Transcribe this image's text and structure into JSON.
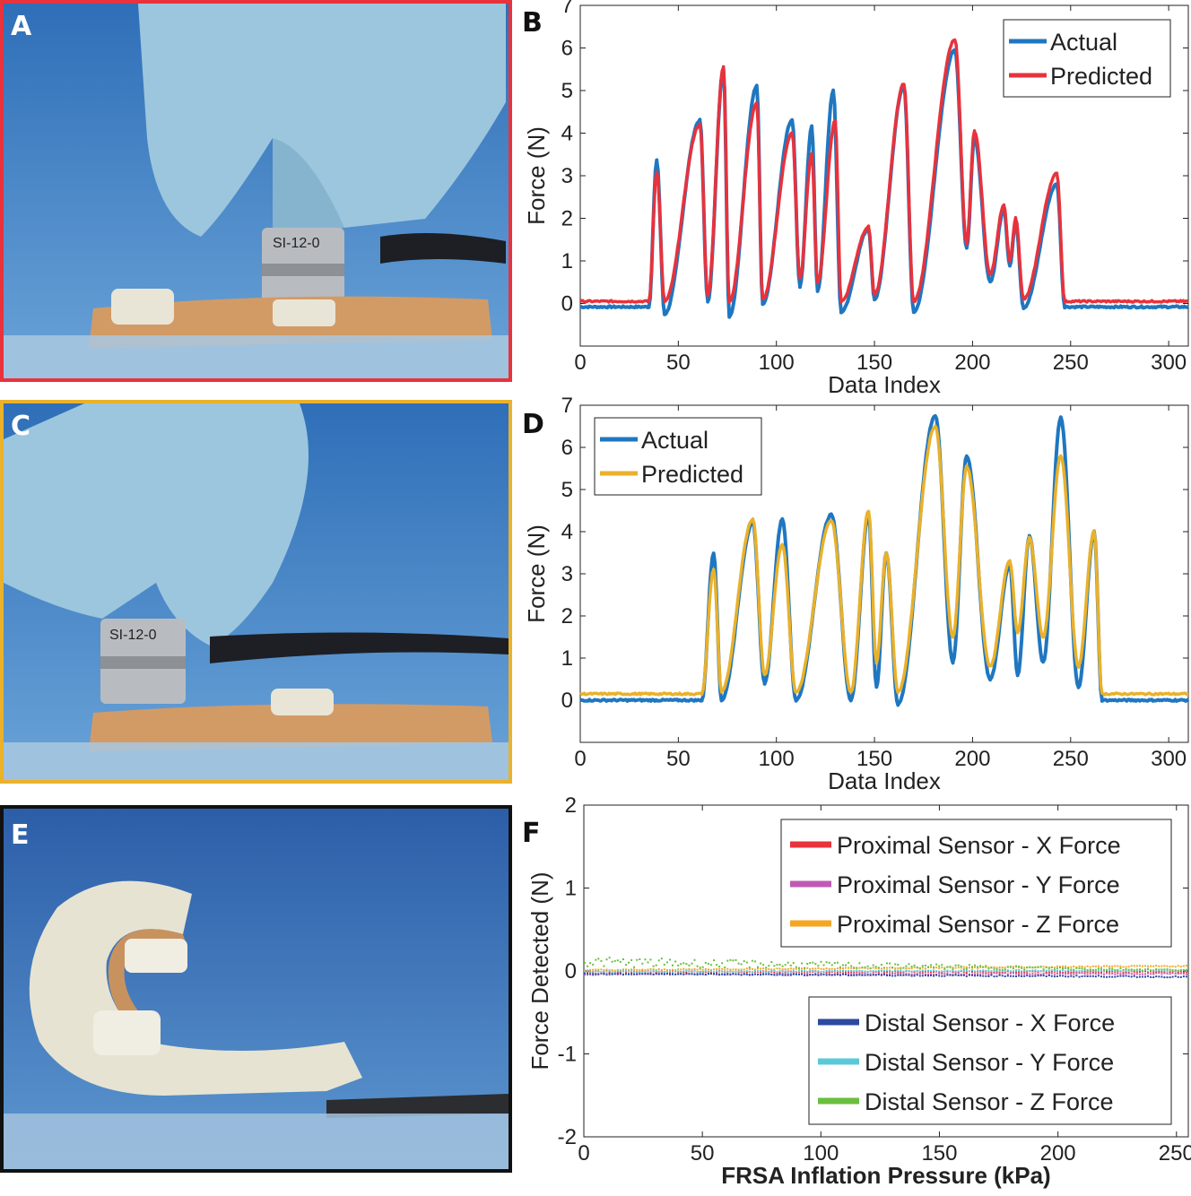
{
  "panel_labels": {
    "a": "A",
    "b": "B",
    "c": "C",
    "d": "D",
    "e": "E",
    "f": "F"
  },
  "colors": {
    "frame_a": "#e8323c",
    "frame_c": "#eab12a",
    "frame_e": "#111111",
    "actual": "#1f77c0",
    "predicted_b": "#e8323c",
    "predicted_d": "#eab12a",
    "prox_x": "#e8323c",
    "prox_y": "#c05ab4",
    "prox_z": "#f5a623",
    "dist_x": "#2b4aa0",
    "dist_y": "#5bc8d8",
    "dist_z": "#6abf3f"
  },
  "photos": {
    "a": {
      "sensor_text": "SI-12-0"
    },
    "c": {
      "sensor_text": "SI-12-0"
    }
  },
  "chart_data": [
    {
      "id": "B",
      "type": "line",
      "xlabel": "Data Index",
      "ylabel": "Force (N)",
      "xlim": [
        0,
        310
      ],
      "ylim": [
        -1,
        7
      ],
      "xticks": [
        0,
        50,
        100,
        150,
        200,
        250,
        300
      ],
      "yticks": [
        0,
        1,
        2,
        3,
        4,
        5,
        6,
        7
      ],
      "legend": "top-right",
      "series": [
        {
          "name": "Actual",
          "color": "#1f77c0",
          "baseline": -0.08,
          "peaks": [
            [
              39,
              3.35
            ],
            [
              61,
              4.3
            ],
            [
              73,
              5.5
            ],
            [
              90,
              5.1
            ],
            [
              108,
              4.3
            ],
            [
              118,
              4.15
            ],
            [
              129,
              5.0
            ],
            [
              147,
              1.75
            ],
            [
              165,
              5.1
            ],
            [
              191,
              5.95
            ],
            [
              201,
              3.9
            ],
            [
              216,
              2.2
            ],
            [
              222,
              1.9
            ],
            [
              243,
              2.8
            ]
          ],
          "valleys": [
            [
              43,
              -0.25
            ],
            [
              65,
              0.05
            ],
            [
              76,
              -0.3
            ],
            [
              93,
              0.0
            ],
            [
              112,
              0.4
            ],
            [
              121,
              0.3
            ],
            [
              133,
              -0.2
            ],
            [
              150,
              0.1
            ],
            [
              170,
              -0.2
            ],
            [
              197,
              1.3
            ],
            [
              209,
              0.5
            ],
            [
              219,
              0.9
            ],
            [
              226,
              -0.1
            ]
          ],
          "start": 35,
          "end": 247
        },
        {
          "name": "Predicted",
          "color": "#e8323c",
          "baseline": 0.05,
          "peaks": [
            [
              39,
              3.1
            ],
            [
              61,
              4.2
            ],
            [
              73,
              5.55
            ],
            [
              90,
              4.7
            ],
            [
              108,
              4.0
            ],
            [
              118,
              3.5
            ],
            [
              130,
              4.3
            ],
            [
              147,
              1.8
            ],
            [
              165,
              5.15
            ],
            [
              191,
              6.2
            ],
            [
              201,
              4.05
            ],
            [
              216,
              2.3
            ],
            [
              222,
              2.0
            ],
            [
              243,
              3.05
            ]
          ],
          "valleys": [
            [
              43,
              0.05
            ],
            [
              65,
              0.2
            ],
            [
              76,
              0.05
            ],
            [
              93,
              0.1
            ],
            [
              112,
              0.6
            ],
            [
              121,
              0.5
            ],
            [
              133,
              0.05
            ],
            [
              150,
              0.2
            ],
            [
              170,
              0.05
            ],
            [
              197,
              1.4
            ],
            [
              209,
              0.7
            ],
            [
              219,
              1.0
            ],
            [
              226,
              0.1
            ]
          ],
          "start": 35,
          "end": 247
        }
      ]
    },
    {
      "id": "D",
      "type": "line",
      "xlabel": "Data Index",
      "ylabel": "Force (N)",
      "xlim": [
        0,
        310
      ],
      "ylim": [
        -1,
        7
      ],
      "xticks": [
        0,
        50,
        100,
        150,
        200,
        250,
        300
      ],
      "yticks": [
        0,
        1,
        2,
        3,
        4,
        5,
        6,
        7
      ],
      "legend": "top-left",
      "series": [
        {
          "name": "Actual",
          "color": "#1f77c0",
          "baseline": 0.0,
          "peaks": [
            [
              68,
              3.5
            ],
            [
              88,
              4.2
            ],
            [
              103,
              4.3
            ],
            [
              128,
              4.4
            ],
            [
              147,
              4.4
            ],
            [
              156,
              3.5
            ],
            [
              181,
              6.75
            ],
            [
              197,
              5.8
            ],
            [
              219,
              3.2
            ],
            [
              229,
              3.9
            ],
            [
              245,
              6.7
            ],
            [
              262,
              4.0
            ]
          ],
          "valleys": [
            [
              72,
              0.0
            ],
            [
              94,
              0.4
            ],
            [
              110,
              0.0
            ],
            [
              138,
              0.0
            ],
            [
              151,
              0.3
            ],
            [
              162,
              -0.1
            ],
            [
              190,
              0.9
            ],
            [
              209,
              0.5
            ],
            [
              223,
              0.6
            ],
            [
              236,
              0.9
            ],
            [
              254,
              0.3
            ]
          ],
          "start": 62,
          "end": 266
        },
        {
          "name": "Predicted",
          "color": "#eab12a",
          "baseline": 0.15,
          "peaks": [
            [
              68,
              3.1
            ],
            [
              88,
              4.3
            ],
            [
              103,
              3.7
            ],
            [
              128,
              4.25
            ],
            [
              147,
              4.5
            ],
            [
              156,
              3.5
            ],
            [
              181,
              6.5
            ],
            [
              197,
              5.55
            ],
            [
              219,
              3.3
            ],
            [
              229,
              3.85
            ],
            [
              245,
              5.8
            ],
            [
              262,
              4.0
            ]
          ],
          "valleys": [
            [
              72,
              0.2
            ],
            [
              94,
              0.6
            ],
            [
              110,
              0.2
            ],
            [
              138,
              0.2
            ],
            [
              151,
              0.9
            ],
            [
              162,
              0.2
            ],
            [
              190,
              1.5
            ],
            [
              209,
              0.8
            ],
            [
              223,
              1.6
            ],
            [
              236,
              1.5
            ],
            [
              254,
              0.8
            ]
          ],
          "start": 62,
          "end": 266
        }
      ]
    },
    {
      "id": "F",
      "type": "scatter",
      "xlabel": "FRSA Inflation Pressure (kPa)",
      "ylabel": "Force Detected (N)",
      "xlim": [
        0,
        255
      ],
      "ylim": [
        -2,
        2
      ],
      "xticks": [
        0,
        50,
        100,
        150,
        200,
        250
      ],
      "yticks": [
        -2,
        -1,
        0,
        1,
        2
      ],
      "legend": "top-right and bottom-right",
      "series": [
        {
          "name": "Proximal Sensor - X Force",
          "color": "#e8323c",
          "y_start": 0.0,
          "y_end": 0.0
        },
        {
          "name": "Proximal Sensor - Y Force",
          "color": "#c05ab4",
          "y_start": -0.03,
          "y_end": -0.02
        },
        {
          "name": "Proximal Sensor - Z Force",
          "color": "#f5a623",
          "y_start": 0.02,
          "y_end": 0.07
        },
        {
          "name": "Distal Sensor - X Force",
          "color": "#2b4aa0",
          "y_start": -0.02,
          "y_end": -0.06
        },
        {
          "name": "Distal Sensor - Y Force",
          "color": "#5bc8d8",
          "y_start": 0.0,
          "y_end": 0.02
        },
        {
          "name": "Distal Sensor - Z Force",
          "color": "#6abf3f",
          "y_start": 0.12,
          "y_end": 0.02
        }
      ]
    }
  ]
}
